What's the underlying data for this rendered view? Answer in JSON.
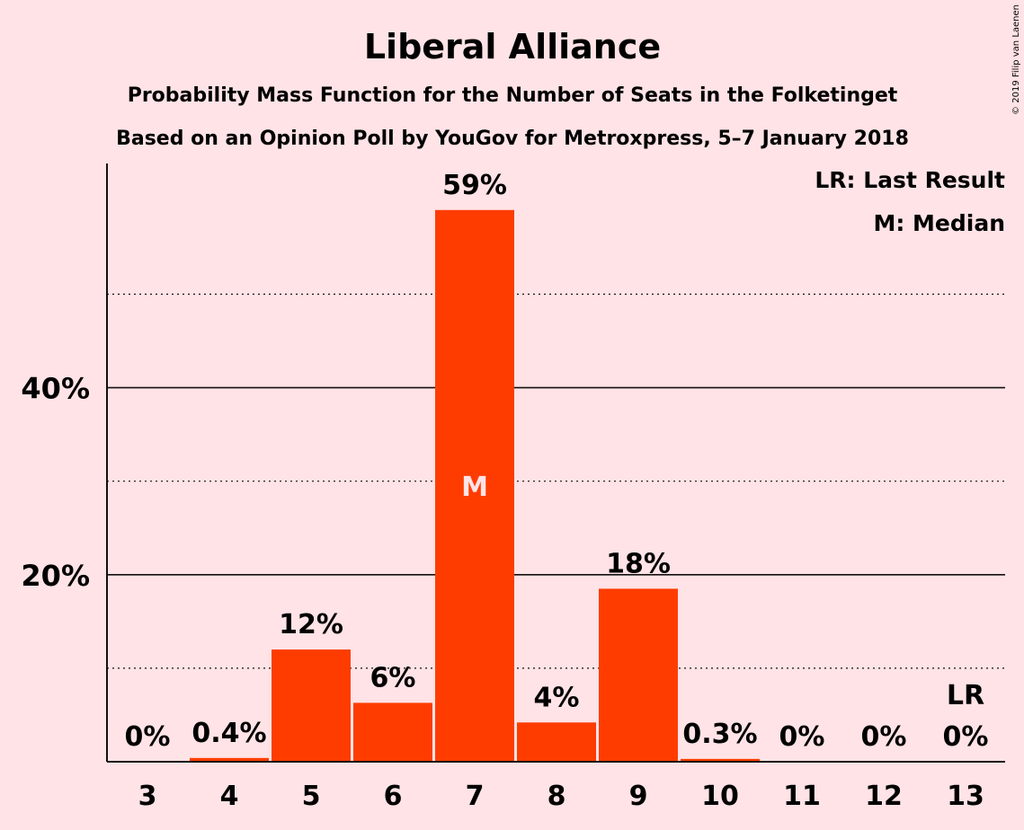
{
  "chart_data": {
    "type": "bar",
    "title": "Liberal Alliance",
    "subtitle_1": "Probability Mass Function for the Number of Seats in the Folketinget",
    "subtitle_2": "Based on an Opinion Poll by YouGov for Metroxpress, 5–7 January 2018",
    "categories": [
      "3",
      "4",
      "5",
      "6",
      "7",
      "8",
      "9",
      "10",
      "11",
      "12",
      "13"
    ],
    "values": [
      0,
      0.4,
      12,
      6.3,
      59,
      4.2,
      18.5,
      0.3,
      0,
      0,
      0
    ],
    "data_labels": [
      "0%",
      "0.4%",
      "12%",
      "6%",
      "59%",
      "4%",
      "18%",
      "0.3%",
      "0%",
      "0%",
      "0%"
    ],
    "ylim": [
      0,
      64
    ],
    "yticks": [
      20,
      40
    ],
    "ytick_labels": [
      "20%",
      "40%"
    ],
    "minor_gridlines": [
      10,
      30,
      50
    ],
    "median_category": "7",
    "median_marker": "M",
    "last_result_category": "13",
    "last_result_marker": "LR",
    "legend": [
      "LR: Last Result",
      "M: Median"
    ],
    "legend_position": "top-right",
    "bar_color": "#FF3C00"
  },
  "copyright": "© 2019 Filip van Laenen"
}
